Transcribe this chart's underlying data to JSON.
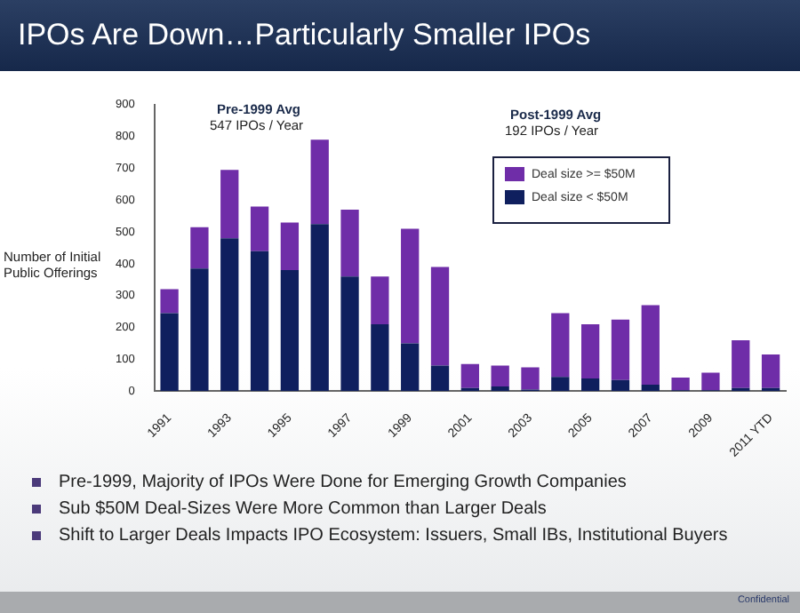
{
  "chart_data": {
    "type": "bar",
    "title": "IPOs Are Down…Particularly Smaller IPOs",
    "ylabel": "Number of Initial Public Offerings",
    "categories": [
      "1991",
      null,
      "1993",
      null,
      "1995",
      null,
      "1997",
      null,
      "1999",
      null,
      "2001",
      null,
      "2003",
      null,
      "2005",
      null,
      "2007",
      null,
      "2009",
      null,
      "2011 YTD"
    ],
    "stacked": true,
    "series": [
      {
        "name": "Deal size < $50M",
        "color": "#0f1f5e",
        "values": [
          245,
          385,
          480,
          440,
          380,
          525,
          360,
          210,
          150,
          80,
          10,
          15,
          5,
          45,
          40,
          35,
          20,
          3,
          3,
          10,
          10
        ]
      },
      {
        "name": "Deal size >= $50M",
        "color": "#6f2da8",
        "values": [
          75,
          130,
          215,
          140,
          150,
          265,
          210,
          150,
          360,
          310,
          75,
          65,
          70,
          200,
          170,
          190,
          250,
          40,
          55,
          150,
          105
        ]
      }
    ],
    "ylim": [
      0,
      900
    ],
    "yticks": [
      0,
      100,
      200,
      300,
      400,
      500,
      600,
      700,
      800,
      900
    ],
    "grid": false,
    "legend": "top right",
    "annotations": [
      "Pre-1999 Avg",
      "547 IPOs / Year",
      "Post-1999  Avg",
      "192 IPOs / Year",
      "Pre-1999, Majority of IPOs Were Done for Emerging Growth Companies",
      "Sub $50M Deal-Sizes Were More Common than Larger Deals",
      "Shift to Larger Deals Impacts IPO Ecosystem:  Issuers, Small IBs, Institutional Buyers",
      "Confidential"
    ]
  }
}
